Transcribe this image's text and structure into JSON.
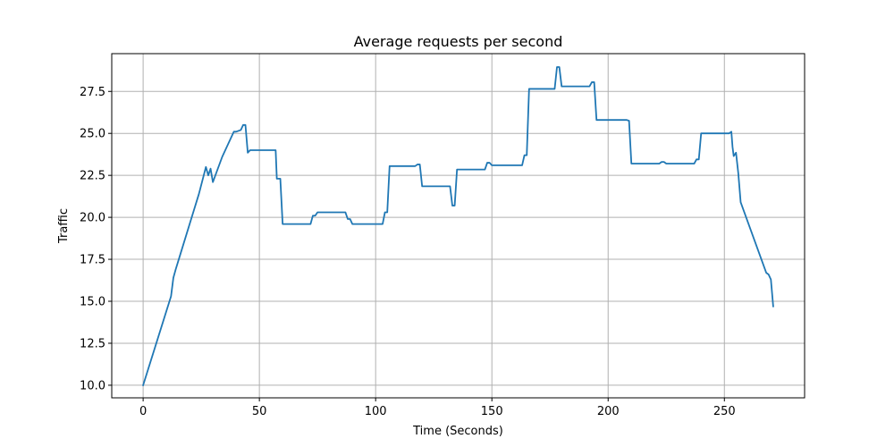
{
  "chart_data": {
    "type": "line",
    "title": "Average requests per second",
    "xlabel": "Time (Seconds)",
    "ylabel": "Traffic",
    "xlim": [
      -13.5,
      284.5
    ],
    "ylim": [
      9.25,
      29.75
    ],
    "xticks": [
      0,
      50,
      100,
      150,
      200,
      250
    ],
    "xtick_labels": [
      "0",
      "50",
      "100",
      "150",
      "200",
      "250"
    ],
    "yticks": [
      10.0,
      12.5,
      15.0,
      17.5,
      20.0,
      22.5,
      25.0,
      27.5
    ],
    "ytick_labels": [
      "10.0",
      "12.5",
      "15.0",
      "17.5",
      "20.0",
      "22.5",
      "25.0",
      "27.5"
    ],
    "grid": true,
    "line_color": "#1f77b4",
    "series": [
      {
        "x": [
          0,
          12,
          13,
          14,
          16,
          20,
          24,
          27,
          28,
          29,
          30,
          34,
          38,
          39,
          40,
          42,
          43,
          44,
          45,
          46,
          50,
          56,
          57,
          57.5,
          59,
          60,
          72,
          73,
          74,
          75,
          87,
          88,
          89,
          90,
          103,
          104,
          105,
          106,
          117,
          118,
          119,
          120,
          132,
          133,
          134,
          135,
          147,
          148,
          149,
          150,
          163,
          164,
          165,
          166,
          177,
          178,
          179,
          180,
          192,
          193,
          194,
          195,
          208,
          209,
          210,
          222,
          223,
          224,
          225,
          237,
          238,
          239,
          240,
          252,
          253,
          253.5,
          254,
          255,
          256,
          257,
          268,
          269,
          270,
          271
        ],
        "y": [
          10.0,
          15.3,
          16.4,
          16.9,
          17.8,
          19.6,
          21.4,
          23.0,
          22.5,
          22.9,
          22.1,
          23.6,
          24.8,
          25.1,
          25.1,
          25.2,
          25.5,
          25.5,
          23.85,
          24.0,
          24.0,
          24.0,
          24.0,
          22.3,
          22.3,
          19.6,
          19.6,
          20.1,
          20.1,
          20.3,
          20.3,
          19.9,
          19.9,
          19.6,
          19.6,
          20.3,
          20.3,
          23.05,
          23.05,
          23.15,
          23.15,
          21.85,
          21.85,
          20.7,
          20.7,
          22.85,
          22.85,
          23.25,
          23.25,
          23.1,
          23.1,
          23.7,
          23.7,
          27.65,
          27.65,
          28.95,
          28.95,
          27.8,
          27.8,
          28.05,
          28.05,
          25.8,
          25.8,
          25.75,
          23.2,
          23.2,
          23.3,
          23.3,
          23.2,
          23.2,
          23.45,
          23.45,
          25.0,
          25.0,
          25.1,
          24.2,
          23.65,
          23.85,
          22.6,
          20.9,
          16.7,
          16.6,
          16.3,
          14.7
        ]
      }
    ]
  }
}
